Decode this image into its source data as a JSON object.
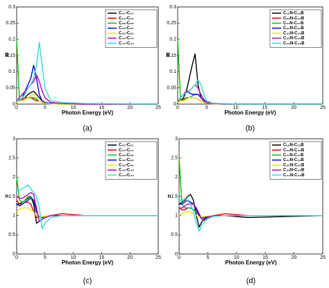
{
  "chart_data": [
    {
      "type": "line",
      "caption": "(a)",
      "x_label": "Photon Energy (eV)",
      "y_label": "R",
      "x": [
        0,
        0.5,
        1,
        1.5,
        2,
        2.5,
        3,
        3.5,
        4,
        4.5,
        5,
        6,
        8,
        12,
        25
      ],
      "xlim": [
        0,
        25
      ],
      "xticks": [
        0,
        5,
        10,
        15,
        20,
        25
      ],
      "ylim": [
        0,
        0.3
      ],
      "yticks": [
        0,
        0.05,
        0.1,
        0.15,
        0.2,
        0.25,
        0.3
      ],
      "series": [
        {
          "name": "C₂₀-C₂₀",
          "color": "#000000",
          "values": [
            0.01,
            0.01,
            0.015,
            0.02,
            0.03,
            0.035,
            0.04,
            0.03,
            0.02,
            0.01,
            0.005,
            0.002,
            0.001,
            0,
            0
          ]
        },
        {
          "name": "C₂₄-C₂₄",
          "color": "#e00000",
          "values": [
            0.01,
            0.01,
            0.015,
            0.02,
            0.02,
            0.02,
            0.015,
            0.01,
            0.01,
            0.005,
            0.003,
            0.001,
            0,
            0,
            0
          ]
        },
        {
          "name": "C₂₈-C₂₈",
          "color": "#00c000",
          "values": [
            0.2,
            0.01,
            0.01,
            0.015,
            0.02,
            0.02,
            0.02,
            0.015,
            0.01,
            0.005,
            0.003,
            0.001,
            0,
            0,
            0
          ]
        },
        {
          "name": "C₃₂-C₃₂",
          "color": "#0000e0",
          "values": [
            0.01,
            0.01,
            0.02,
            0.04,
            0.06,
            0.08,
            0.12,
            0.08,
            0.03,
            0.01,
            0.005,
            0.002,
            0.001,
            0,
            0
          ]
        },
        {
          "name": "C₃₆-C₃₆",
          "color": "#e8e800",
          "values": [
            0.005,
            0.01,
            0.01,
            0.015,
            0.02,
            0.025,
            0.03,
            0.02,
            0.01,
            0.005,
            0.003,
            0.001,
            0,
            0,
            0
          ]
        },
        {
          "name": "C₄₀-C₄₀",
          "color": "#c000c0",
          "values": [
            0.01,
            0.02,
            0.03,
            0.04,
            0.05,
            0.06,
            0.07,
            0.09,
            0.07,
            0.04,
            0.02,
            0.005,
            0.002,
            0,
            0
          ]
        },
        {
          "name": "C₄₄-C₄₄",
          "color": "#30d8d8",
          "values": [
            0.01,
            0.01,
            0.02,
            0.03,
            0.05,
            0.06,
            0.08,
            0.12,
            0.19,
            0.12,
            0.05,
            0.01,
            0.005,
            0.002,
            0
          ]
        }
      ]
    },
    {
      "type": "line",
      "caption": "(b)",
      "x_label": "Photon Energy (eV)",
      "y_label": "R",
      "x": [
        0,
        0.5,
        1,
        1.5,
        2,
        2.5,
        3,
        3.5,
        4,
        4.5,
        5,
        6,
        8,
        12,
        25
      ],
      "xlim": [
        0,
        25
      ],
      "xticks": [
        0,
        5,
        10,
        15,
        20,
        25
      ],
      "ylim": [
        0,
        0.3
      ],
      "yticks": [
        0,
        0.05,
        0.1,
        0.15,
        0.2,
        0.25,
        0.3
      ],
      "series": [
        {
          "name": "C₁₉N-C₁₉B",
          "color": "#000000",
          "values": [
            0.01,
            0.01,
            0.02,
            0.04,
            0.08,
            0.12,
            0.155,
            0.06,
            0.02,
            0.01,
            0.005,
            0.002,
            0.001,
            0,
            0
          ]
        },
        {
          "name": "C₂₃N-C₂₃B",
          "color": "#e00000",
          "values": [
            0.01,
            0.01,
            0.015,
            0.02,
            0.02,
            0.02,
            0.02,
            0.015,
            0.01,
            0.005,
            0.003,
            0.001,
            0.001,
            0,
            0
          ]
        },
        {
          "name": "C₂₇N-C₂₇B",
          "color": "#00c000",
          "values": [
            0.2,
            0.01,
            0.01,
            0.02,
            0.02,
            0.025,
            0.03,
            0.03,
            0.02,
            0.01,
            0.005,
            0.002,
            0,
            0,
            0
          ]
        },
        {
          "name": "C₃₁N-C₃₁B",
          "color": "#0000e0",
          "values": [
            0.01,
            0.02,
            0.03,
            0.04,
            0.035,
            0.03,
            0.03,
            0.03,
            0.02,
            0.01,
            0.005,
            0.002,
            0,
            0,
            0
          ]
        },
        {
          "name": "C₃₅N-C₃₅B",
          "color": "#e8e800",
          "values": [
            0.005,
            0.01,
            0.01,
            0.015,
            0.02,
            0.02,
            0.02,
            0.015,
            0.01,
            0.005,
            0.003,
            0.001,
            0,
            0,
            0
          ]
        },
        {
          "name": "C₃₉N-C₃₉B",
          "color": "#c000c0",
          "values": [
            0.01,
            0.02,
            0.03,
            0.04,
            0.04,
            0.05,
            0.06,
            0.05,
            0.03,
            0.015,
            0.005,
            0.002,
            0,
            0,
            0
          ]
        },
        {
          "name": "C₄₃N-C₄₃B",
          "color": "#30d8d8",
          "values": [
            0.01,
            0.02,
            0.03,
            0.035,
            0.04,
            0.05,
            0.06,
            0.075,
            0.06,
            0.03,
            0.01,
            0.003,
            0.001,
            0,
            0
          ]
        }
      ]
    },
    {
      "type": "line",
      "caption": "(c)",
      "x_label": "Photon Energy (eV)",
      "y_label": "n",
      "x": [
        0,
        0.5,
        1,
        1.5,
        2,
        2.5,
        3,
        3.5,
        4,
        4.5,
        5,
        6,
        8,
        12,
        25
      ],
      "xlim": [
        0,
        25
      ],
      "xticks": [
        0,
        5,
        10,
        15,
        20,
        25
      ],
      "ylim": [
        0,
        3
      ],
      "yticks": [
        0,
        0.5,
        1,
        1.5,
        2,
        2.5,
        3
      ],
      "series": [
        {
          "name": "C₂₀-C₂₀",
          "color": "#000000",
          "values": [
            1.3,
            1.3,
            1.35,
            1.4,
            1.45,
            1.5,
            1.3,
            0.8,
            0.85,
            0.9,
            0.95,
            1.0,
            1.0,
            1.0,
            1.0
          ]
        },
        {
          "name": "C₂₄-C₂₄",
          "color": "#e00000",
          "values": [
            1.4,
            1.3,
            1.3,
            1.35,
            1.35,
            1.3,
            1.1,
            0.95,
            0.95,
            0.97,
            0.98,
            1.0,
            1.05,
            1.0,
            1.0
          ]
        },
        {
          "name": "C₂₈-C₂₈",
          "color": "#00c000",
          "values": [
            2.0,
            1.4,
            1.35,
            1.4,
            1.5,
            1.5,
            1.4,
            1.1,
            0.95,
            0.95,
            0.97,
            1.0,
            1.0,
            1.0,
            1.0
          ]
        },
        {
          "name": "C₃₂-C₃₂",
          "color": "#0000e0",
          "values": [
            1.3,
            1.25,
            1.3,
            1.35,
            1.4,
            1.45,
            1.4,
            1.1,
            0.95,
            0.95,
            0.97,
            1.0,
            1.0,
            1.0,
            1.0
          ]
        },
        {
          "name": "C₃₆-C₃₆",
          "color": "#e8e800",
          "values": [
            1.1,
            1.15,
            1.2,
            1.2,
            1.2,
            1.15,
            1.1,
            1.0,
            0.95,
            0.97,
            0.98,
            1.0,
            1.0,
            1.0,
            1.0
          ]
        },
        {
          "name": "C₄₀-C₄₀",
          "color": "#c000c0",
          "values": [
            1.5,
            1.45,
            1.45,
            1.5,
            1.55,
            1.6,
            1.55,
            1.2,
            0.85,
            0.9,
            0.95,
            1.0,
            1.0,
            1.0,
            1.0
          ]
        },
        {
          "name": "C₄₄-C₄₄",
          "color": "#30d8d8",
          "values": [
            1.7,
            1.65,
            1.7,
            1.75,
            1.8,
            1.7,
            1.6,
            1.5,
            1.2,
            0.65,
            0.8,
            0.95,
            1.0,
            1.0,
            1.0
          ]
        }
      ]
    },
    {
      "type": "line",
      "caption": "(d)",
      "x_label": "Photon Energy (eV)",
      "y_label": "n",
      "x": [
        0,
        0.5,
        1,
        1.5,
        2,
        2.5,
        3,
        3.5,
        4,
        4.5,
        5,
        6,
        8,
        12,
        25
      ],
      "xlim": [
        0,
        25
      ],
      "xticks": [
        0,
        5,
        10,
        15,
        20,
        25
      ],
      "ylim": [
        0,
        3
      ],
      "yticks": [
        0,
        0.5,
        1,
        1.5,
        2,
        2.5,
        3
      ],
      "series": [
        {
          "name": "C₁₉N-C₁₉B",
          "color": "#000000",
          "values": [
            1.3,
            1.35,
            1.4,
            1.5,
            1.55,
            1.4,
            1.0,
            0.7,
            0.85,
            0.9,
            0.95,
            1.0,
            1.0,
            0.95,
            1.0
          ]
        },
        {
          "name": "C₂₃N-C₂₃B",
          "color": "#e00000",
          "values": [
            1.2,
            1.15,
            1.15,
            1.2,
            1.2,
            1.15,
            1.1,
            1.0,
            0.95,
            0.97,
            0.98,
            1.0,
            1.05,
            1.0,
            1.0
          ]
        },
        {
          "name": "C₂₇N-C₂₇B",
          "color": "#00c000",
          "values": [
            2.5,
            1.3,
            1.2,
            1.2,
            1.2,
            1.15,
            1.1,
            1.0,
            0.95,
            0.97,
            0.98,
            1.0,
            1.0,
            1.0,
            1.0
          ]
        },
        {
          "name": "C₃₁N-C₃₁B",
          "color": "#0000e0",
          "values": [
            1.3,
            1.3,
            1.35,
            1.4,
            1.35,
            1.3,
            1.15,
            1.0,
            0.9,
            0.95,
            0.97,
            1.0,
            1.0,
            1.0,
            1.0
          ]
        },
        {
          "name": "C₃₅N-C₃₅B",
          "color": "#e8e800",
          "values": [
            1.0,
            1.05,
            1.1,
            1.1,
            1.1,
            1.05,
            1.0,
            0.97,
            0.97,
            0.98,
            0.99,
            1.0,
            1.0,
            1.0,
            1.0
          ]
        },
        {
          "name": "C₃₉N-C₃₉B",
          "color": "#c000c0",
          "values": [
            1.2,
            1.2,
            1.25,
            1.3,
            1.3,
            1.3,
            1.2,
            1.05,
            0.9,
            0.92,
            0.95,
            1.0,
            1.0,
            1.0,
            1.0
          ]
        },
        {
          "name": "C₄₃N-C₄₃B",
          "color": "#30d8d8",
          "values": [
            1.4,
            1.4,
            1.45,
            1.4,
            1.3,
            1.1,
            0.8,
            0.6,
            0.75,
            0.85,
            0.92,
            0.98,
            1.0,
            1.0,
            1.0
          ]
        }
      ]
    }
  ]
}
